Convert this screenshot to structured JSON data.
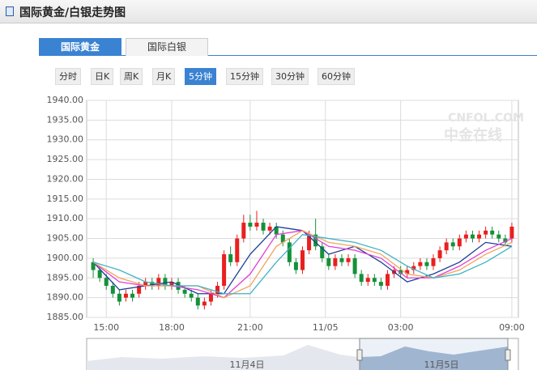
{
  "header": {
    "title": "国际黄金/白银走势图"
  },
  "tabs": [
    "国际黄金",
    "国际白银"
  ],
  "active_tab": 0,
  "periods": [
    "分时",
    "日K",
    "周K",
    "月K",
    "5分钟",
    "15分钟",
    "30分钟",
    "60分钟"
  ],
  "active_period": 4,
  "watermark": {
    "top": "CNFOL.COM",
    "bottom": "中金在线"
  },
  "navigator": {
    "labels": [
      "11月4日",
      "11月5日"
    ]
  },
  "chart_data": {
    "type": "candlestick",
    "grid": true,
    "up_color": "#e8201f",
    "down_color": "#14913a",
    "xlim": [
      -1,
      65
    ],
    "xticks": [
      {
        "value": 2,
        "label": "15:00"
      },
      {
        "value": 12,
        "label": "18:00"
      },
      {
        "value": 24,
        "label": "21:00"
      },
      {
        "value": 35.5,
        "label": "11/05"
      },
      {
        "value": 47,
        "label": "03:00"
      },
      {
        "value": 64,
        "label": "09:00"
      }
    ],
    "ylim": [
      1885,
      1940
    ],
    "yticks": [
      {
        "value": 1885,
        "label": "1885.00"
      },
      {
        "value": 1890,
        "label": "1890.00"
      },
      {
        "value": 1895,
        "label": "1895.00"
      },
      {
        "value": 1900,
        "label": "1900.00"
      },
      {
        "value": 1905,
        "label": "1905.00"
      },
      {
        "value": 1910,
        "label": "1910.00"
      },
      {
        "value": 1915,
        "label": "1915.00"
      },
      {
        "value": 1920,
        "label": "1920.00"
      },
      {
        "value": 1925,
        "label": "1925.00"
      },
      {
        "value": 1930,
        "label": "1930.00"
      },
      {
        "value": 1935,
        "label": "1935.00"
      },
      {
        "value": 1940,
        "label": "1940.00"
      }
    ],
    "open": [
      1899,
      1897,
      1895,
      1893,
      1891,
      1890,
      1891,
      1891,
      1893,
      1894,
      1893,
      1895,
      1893,
      1894,
      1892,
      1891,
      1890,
      1888,
      1889,
      1891,
      1893,
      1901,
      1899,
      1905,
      1909,
      1908,
      1909,
      1907,
      1908,
      1906,
      1904,
      1899,
      1897,
      1902,
      1906,
      1903,
      1900,
      1898,
      1900,
      1899,
      1900,
      1896,
      1894,
      1895,
      1894,
      1893,
      1896,
      1897,
      1896,
      1897,
      1898,
      1899,
      1898,
      1900,
      1902,
      1904,
      1903,
      1905,
      1906,
      1905,
      1906,
      1907,
      1906,
      1905,
      1905
    ],
    "close": [
      1897,
      1895,
      1893,
      1891,
      1889,
      1891,
      1890,
      1893,
      1894,
      1893,
      1895,
      1893,
      1894,
      1892,
      1891,
      1890,
      1888,
      1889,
      1891,
      1893,
      1901,
      1899,
      1905,
      1909,
      1908,
      1909,
      1907,
      1908,
      1906,
      1904,
      1899,
      1897,
      1902,
      1906,
      1903,
      1900,
      1898,
      1900,
      1899,
      1900,
      1896,
      1894,
      1895,
      1894,
      1893,
      1896,
      1897,
      1896,
      1897,
      1898,
      1899,
      1898,
      1900,
      1902,
      1904,
      1903,
      1905,
      1906,
      1905,
      1906,
      1907,
      1906,
      1905,
      1904,
      1908
    ],
    "high": [
      1900,
      1898,
      1896,
      1894,
      1892,
      1892,
      1892,
      1894,
      1895,
      1895,
      1896,
      1896,
      1895,
      1895,
      1893,
      1892,
      1891,
      1890,
      1892,
      1894,
      1902,
      1903,
      1906,
      1911,
      1911,
      1912,
      1910,
      1909,
      1909,
      1907,
      1905,
      1900,
      1903,
      1907,
      1910,
      1904,
      1901,
      1901,
      1901,
      1901,
      1901,
      1897,
      1896,
      1896,
      1895,
      1897,
      1898,
      1898,
      1898,
      1899,
      1900,
      1900,
      1901,
      1903,
      1905,
      1905,
      1906,
      1907,
      1907,
      1907,
      1908,
      1908,
      1907,
      1906,
      1909
    ],
    "low": [
      1895,
      1894,
      1892,
      1890,
      1888,
      1889,
      1889,
      1890,
      1892,
      1892,
      1892,
      1892,
      1892,
      1891,
      1890,
      1889,
      1887,
      1887,
      1888,
      1890,
      1892,
      1898,
      1898,
      1904,
      1907,
      1907,
      1906,
      1906,
      1905,
      1903,
      1898,
      1896,
      1896,
      1901,
      1902,
      1899,
      1897,
      1897,
      1898,
      1898,
      1895,
      1893,
      1893,
      1893,
      1892,
      1892,
      1895,
      1895,
      1895,
      1896,
      1897,
      1897,
      1897,
      1899,
      1901,
      1902,
      1902,
      1904,
      1904,
      1904,
      1905,
      1905,
      1904,
      1903,
      1904
    ],
    "ma_x": [
      0,
      4,
      8,
      12,
      16,
      20,
      24,
      28,
      32,
      36,
      40,
      44,
      48,
      52,
      56,
      60,
      64
    ],
    "series": [
      {
        "color": "#1c3f95",
        "values": [
          1899,
          1892,
          1893,
          1894,
          1891,
          1891,
          1901,
          1908,
          1907,
          1901,
          1903,
          1899,
          1894,
          1896,
          1899,
          1904,
          1903
        ]
      },
      {
        "color": "#e23fd6",
        "values": [
          1899,
          1894,
          1893,
          1893,
          1892,
          1890,
          1896,
          1906,
          1907,
          1903,
          1902,
          1900,
          1895,
          1895,
          1898,
          1902,
          1905
        ]
      },
      {
        "color": "#f2a35c",
        "values": [
          1899,
          1895,
          1893,
          1893,
          1893,
          1890,
          1893,
          1903,
          1907,
          1904,
          1903,
          1901,
          1896,
          1895,
          1897,
          1901,
          1904
        ]
      },
      {
        "color": "#3fb3c4",
        "values": [
          1899,
          1897,
          1894,
          1893,
          1893,
          1891,
          1891,
          1899,
          1906,
          1905,
          1904,
          1902,
          1898,
          1895,
          1896,
          1899,
          1903
        ]
      }
    ]
  }
}
